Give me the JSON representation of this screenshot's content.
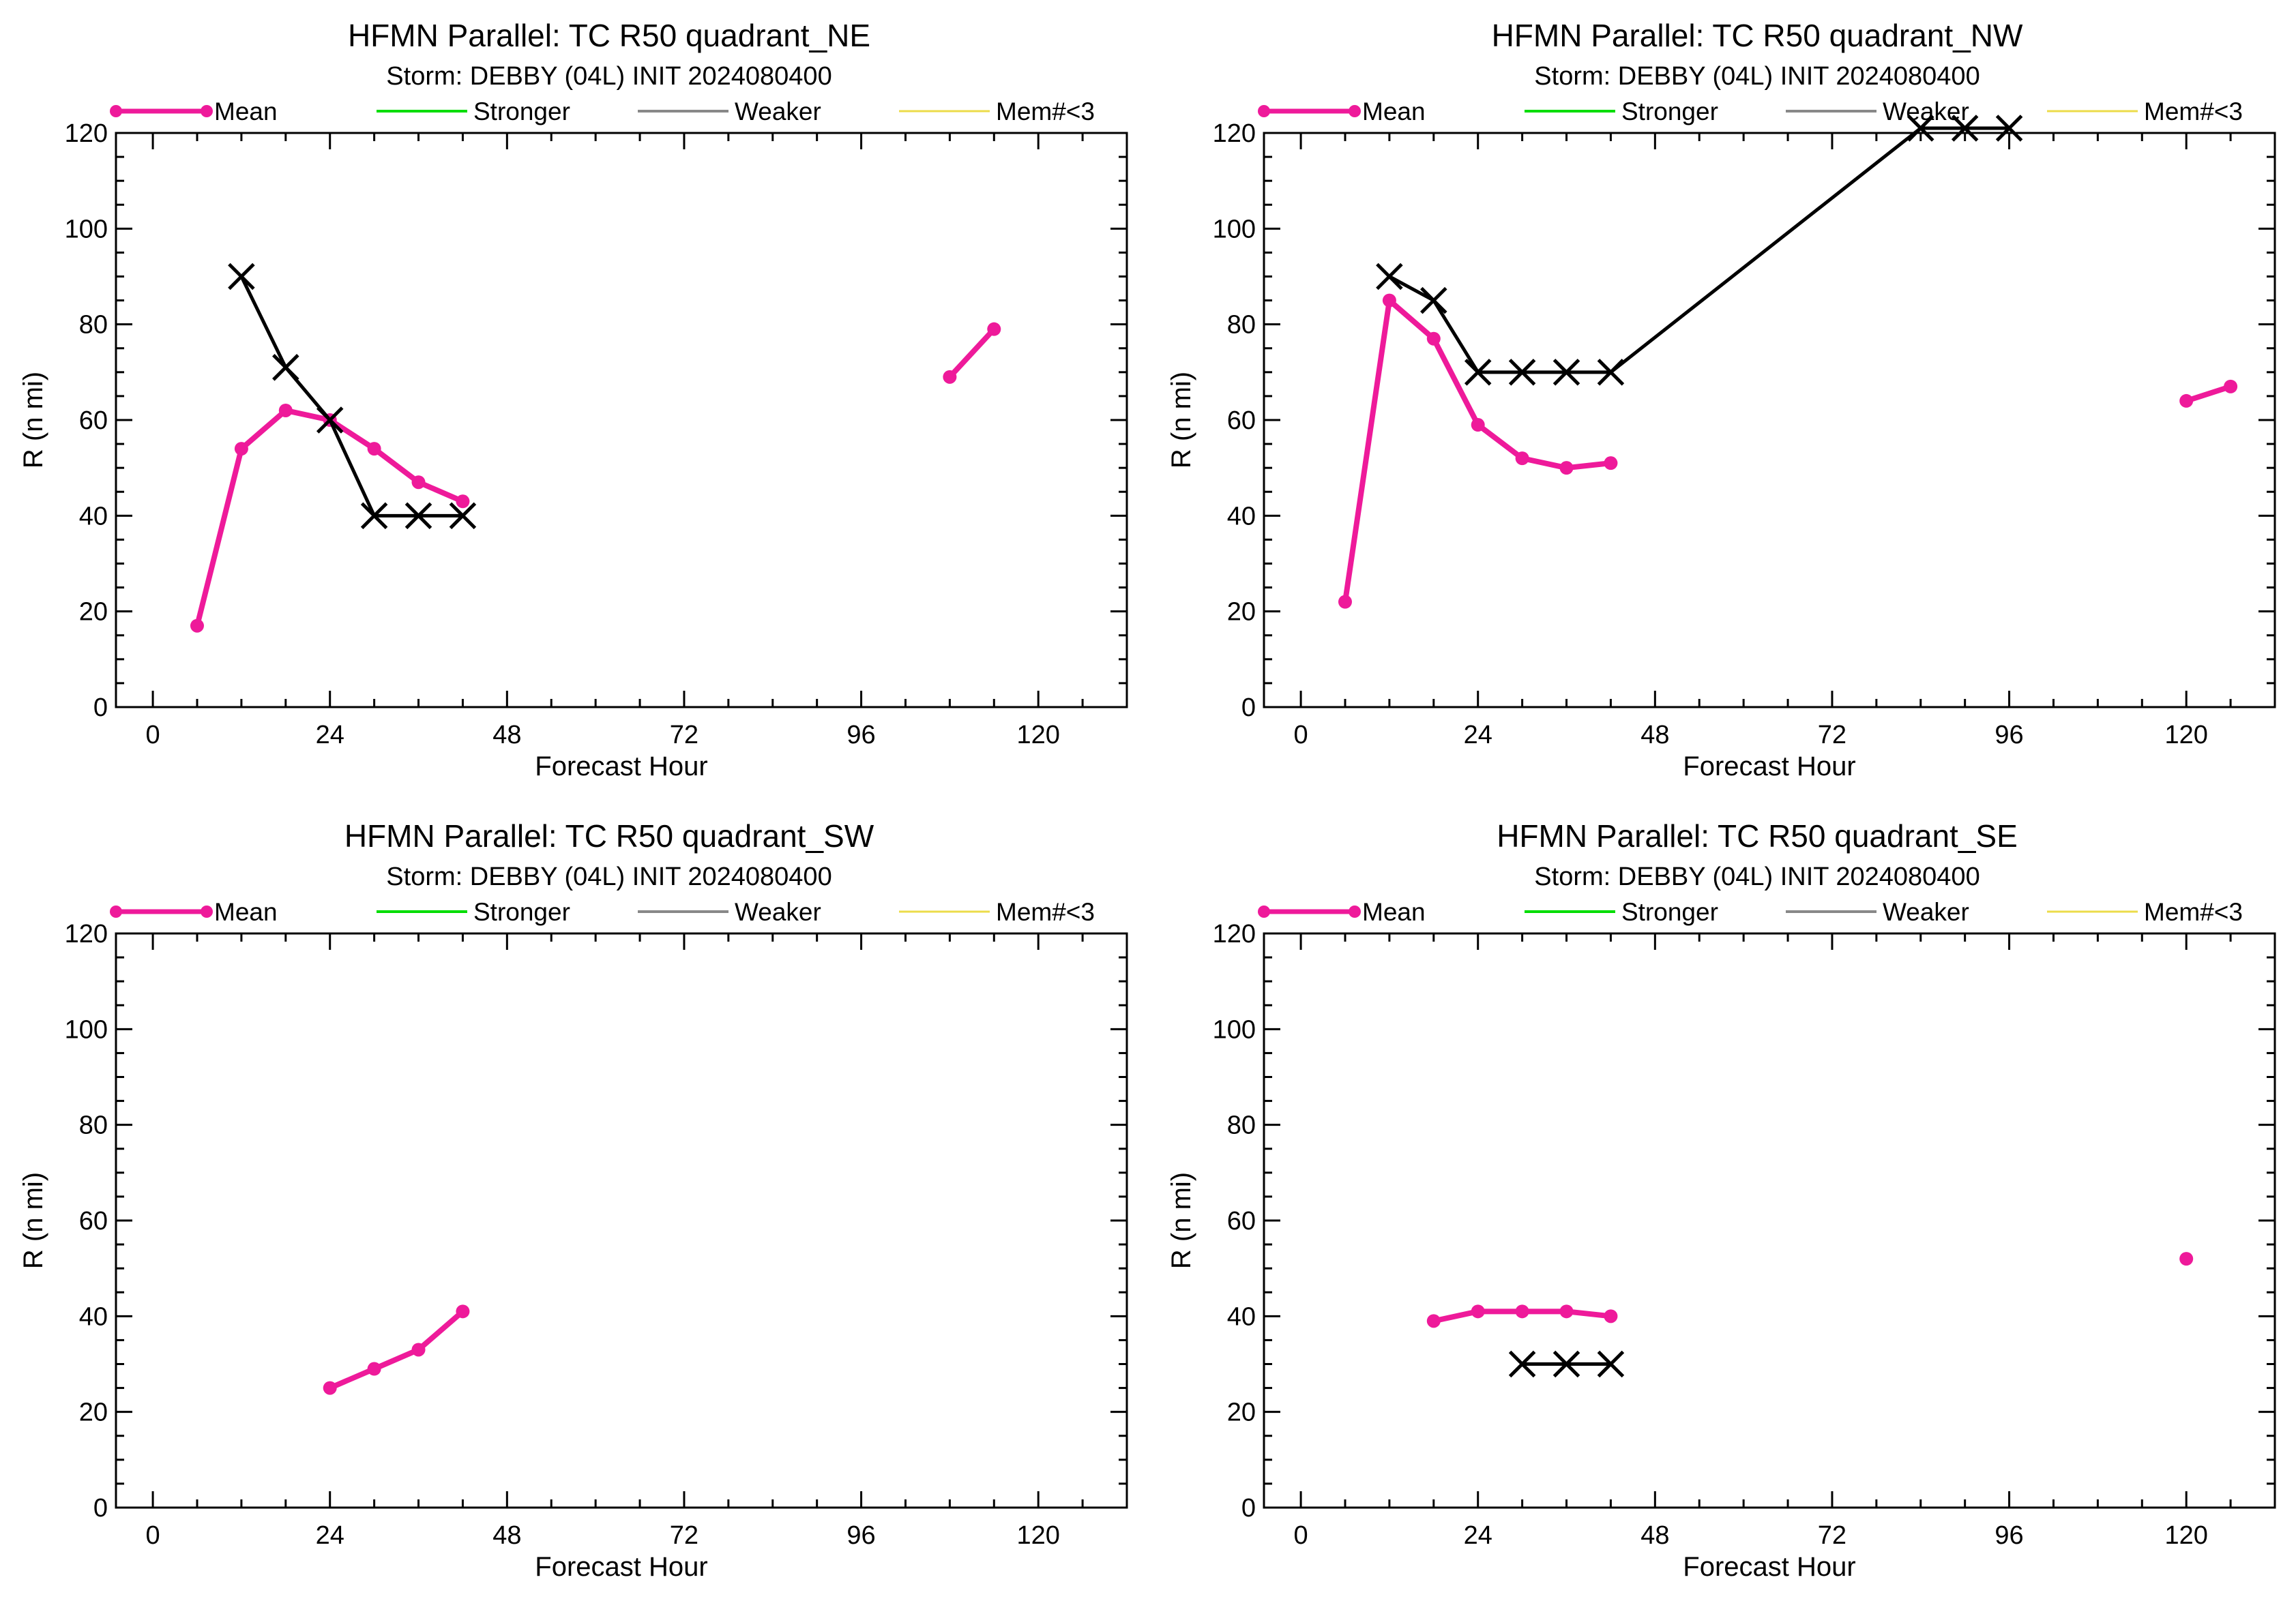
{
  "legend": {
    "mean": "Mean",
    "stronger": "Stronger",
    "weaker": "Weaker",
    "few_members": "Mem#<3"
  },
  "colors": {
    "mean": "#ee1a9a",
    "stronger": "#00dd00",
    "weaker": "#888888",
    "few_members": "#ecdc4a",
    "best_track": "#000000"
  },
  "chart_data": [
    {
      "type": "line",
      "title": "HFMN Parallel: TC  R50 quadrant_NE",
      "subtitle": "Storm: DEBBY (04L) INIT 2024080400",
      "xlabel": "Forecast Hour",
      "ylabel": "R (n mi)",
      "xlim": [
        -5,
        132
      ],
      "ylim": [
        0,
        120
      ],
      "xticks": [
        0,
        24,
        48,
        72,
        96,
        120
      ],
      "yticks": [
        0,
        20,
        40,
        60,
        80,
        100,
        120
      ],
      "legend_position": "top",
      "series": [
        {
          "name": "Mean",
          "role": "mean",
          "points": [
            [
              6,
              17
            ],
            [
              12,
              54
            ],
            [
              18,
              62
            ],
            [
              24,
              60
            ],
            [
              30,
              54
            ],
            [
              36,
              47
            ],
            [
              42,
              43
            ]
          ]
        },
        {
          "name": "Mean",
          "role": "mean",
          "points": [
            [
              108,
              69
            ],
            [
              114,
              79
            ]
          ]
        },
        {
          "role": "best_track",
          "points": [
            [
              12,
              90
            ],
            [
              18,
              71
            ],
            [
              24,
              60
            ],
            [
              30,
              40
            ],
            [
              36,
              40
            ],
            [
              42,
              40
            ]
          ]
        }
      ]
    },
    {
      "type": "line",
      "title": "HFMN Parallel: TC  R50 quadrant_NW",
      "subtitle": "Storm: DEBBY (04L) INIT 2024080400",
      "xlabel": "Forecast Hour",
      "ylabel": "R (n mi)",
      "xlim": [
        -5,
        132
      ],
      "ylim": [
        0,
        120
      ],
      "xticks": [
        0,
        24,
        48,
        72,
        96,
        120
      ],
      "yticks": [
        0,
        20,
        40,
        60,
        80,
        100,
        120
      ],
      "legend_position": "top",
      "series": [
        {
          "name": "Mean",
          "role": "mean",
          "points": [
            [
              6,
              22
            ],
            [
              12,
              85
            ],
            [
              18,
              77
            ],
            [
              24,
              59
            ],
            [
              30,
              52
            ],
            [
              36,
              50
            ],
            [
              42,
              51
            ]
          ]
        },
        {
          "name": "Mean",
          "role": "mean",
          "points": [
            [
              120,
              64
            ],
            [
              126,
              67
            ]
          ]
        },
        {
          "role": "best_track",
          "points": [
            [
              12,
              90
            ],
            [
              18,
              85
            ],
            [
              24,
              70
            ],
            [
              30,
              70
            ],
            [
              36,
              70
            ],
            [
              42,
              70
            ],
            [
              84,
              121
            ],
            [
              90,
              121
            ],
            [
              96,
              121
            ]
          ]
        }
      ]
    },
    {
      "type": "line",
      "title": "HFMN Parallel: TC  R50 quadrant_SW",
      "subtitle": "Storm: DEBBY (04L) INIT 2024080400",
      "xlabel": "Forecast Hour",
      "ylabel": "R (n mi)",
      "xlim": [
        -5,
        132
      ],
      "ylim": [
        0,
        120
      ],
      "xticks": [
        0,
        24,
        48,
        72,
        96,
        120
      ],
      "yticks": [
        0,
        20,
        40,
        60,
        80,
        100,
        120
      ],
      "legend_position": "top",
      "series": [
        {
          "name": "Mean",
          "role": "mean",
          "points": [
            [
              24,
              25
            ],
            [
              30,
              29
            ],
            [
              36,
              33
            ],
            [
              42,
              41
            ]
          ]
        }
      ]
    },
    {
      "type": "line",
      "title": "HFMN Parallel: TC  R50 quadrant_SE",
      "subtitle": "Storm: DEBBY (04L) INIT 2024080400",
      "xlabel": "Forecast Hour",
      "ylabel": "R (n mi)",
      "xlim": [
        -5,
        132
      ],
      "ylim": [
        0,
        120
      ],
      "xticks": [
        0,
        24,
        48,
        72,
        96,
        120
      ],
      "yticks": [
        0,
        20,
        40,
        60,
        80,
        100,
        120
      ],
      "legend_position": "top",
      "series": [
        {
          "name": "Mean",
          "role": "mean",
          "points": [
            [
              18,
              39
            ],
            [
              24,
              41
            ],
            [
              30,
              41
            ],
            [
              36,
              41
            ],
            [
              42,
              40
            ]
          ]
        },
        {
          "name": "Mean",
          "role": "mean",
          "points": [
            [
              120,
              52
            ]
          ]
        },
        {
          "role": "best_track",
          "points": [
            [
              30,
              30
            ],
            [
              36,
              30
            ],
            [
              42,
              30
            ]
          ]
        }
      ]
    }
  ]
}
